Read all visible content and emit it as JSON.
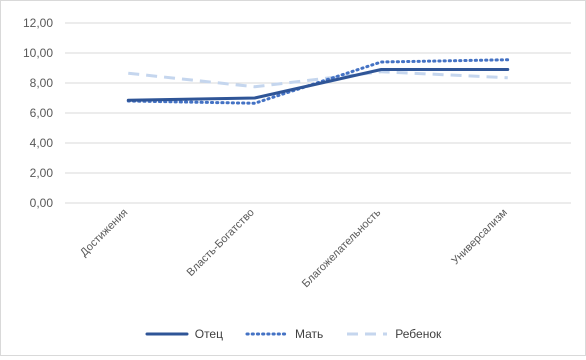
{
  "chart_data": {
    "type": "line",
    "categories": [
      "Достижения",
      "Власть-Богатство",
      "Благожелательность",
      "Универсализм"
    ],
    "series": [
      {
        "name": "Отец",
        "values": [
          6.85,
          7.0,
          8.9,
          8.9
        ],
        "color": "#2f5597",
        "style": "solid"
      },
      {
        "name": "Мать",
        "values": [
          6.8,
          6.65,
          9.4,
          9.55
        ],
        "color": "#4472c4",
        "style": "dotted"
      },
      {
        "name": "Ребенок",
        "values": [
          8.65,
          7.75,
          8.75,
          8.35
        ],
        "color": "#c5d6ee",
        "style": "dashed"
      }
    ],
    "yticks": [
      "0,00",
      "2,00",
      "4,00",
      "6,00",
      "8,00",
      "10,00",
      "12,00"
    ],
    "ylim": [
      0,
      12
    ],
    "grid": true,
    "legend_position": "bottom"
  }
}
